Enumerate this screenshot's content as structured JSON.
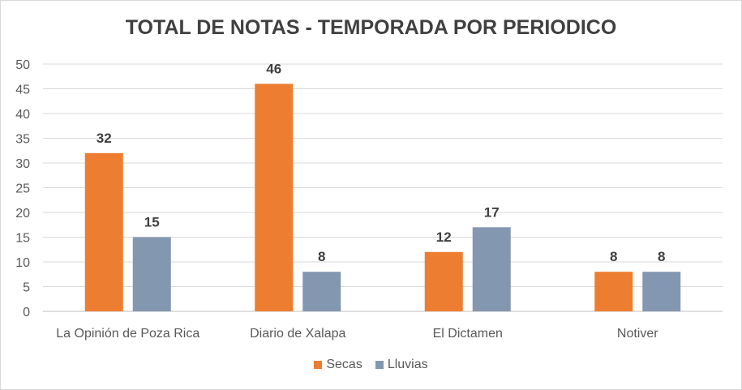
{
  "chart_data": {
    "type": "bar",
    "title": "TOTAL DE NOTAS - TEMPORADA POR PERIODICO",
    "categories": [
      "La Opinión de Poza Rica",
      "Diario de Xalapa",
      "El Dictamen",
      "Notiver"
    ],
    "series": [
      {
        "name": "Secas",
        "color": "#ed7d31",
        "values": [
          32,
          46,
          12,
          8
        ]
      },
      {
        "name": "Lluvias",
        "color": "#8497b0",
        "values": [
          15,
          8,
          17,
          8
        ]
      }
    ],
    "yticks": [
      0,
      5,
      10,
      15,
      20,
      25,
      30,
      35,
      40,
      45,
      50
    ],
    "ylim": [
      0,
      50
    ],
    "xlabel": "",
    "ylabel": "",
    "grid": true,
    "legend": "bottom-center"
  }
}
